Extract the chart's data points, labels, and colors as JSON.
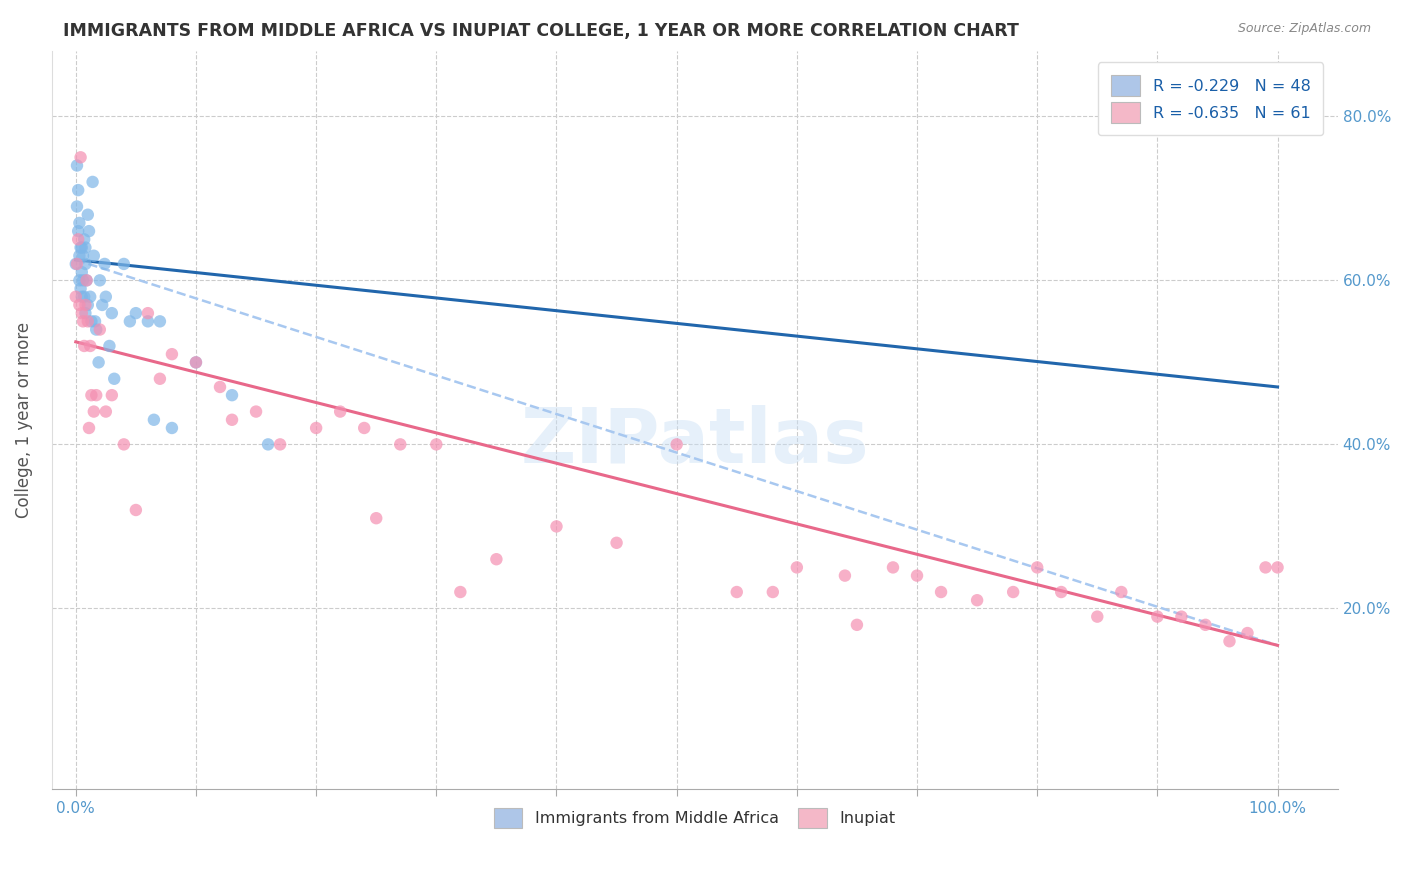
{
  "title": "IMMIGRANTS FROM MIDDLE AFRICA VS INUPIAT COLLEGE, 1 YEAR OR MORE CORRELATION CHART",
  "source": "Source: ZipAtlas.com",
  "ylabel": "College, 1 year or more",
  "xlim": [
    -0.02,
    1.05
  ],
  "ylim": [
    -0.02,
    0.88
  ],
  "x_tick_vals": [
    0.0,
    0.1,
    0.2,
    0.3,
    0.4,
    0.5,
    0.6,
    0.7,
    0.8,
    0.9,
    1.0
  ],
  "x_tick_labels_show": [
    "0.0%",
    "",
    "",
    "",
    "",
    "",
    "",
    "",
    "",
    "",
    "100.0%"
  ],
  "y_tick_vals": [
    0.2,
    0.4,
    0.6,
    0.8
  ],
  "y_tick_labels": [
    "20.0%",
    "40.0%",
    "60.0%",
    "80.0%"
  ],
  "legend1_labels": [
    "R = -0.229   N = 48",
    "R = -0.635   N = 61"
  ],
  "legend1_colors": [
    "#aec6e8",
    "#f4b8c8"
  ],
  "legend2_labels": [
    "Immigrants from Middle Africa",
    "Inupiat"
  ],
  "blue_scatter_color": "#7eb6e8",
  "pink_scatter_color": "#f48fb1",
  "blue_line_color": "#2166ac",
  "pink_line_color": "#e8688a",
  "dashed_line_color": "#a8c8f0",
  "watermark": "ZIPatlas",
  "blue_scatter_x": [
    0.0,
    0.001,
    0.001,
    0.002,
    0.002,
    0.003,
    0.003,
    0.003,
    0.004,
    0.004,
    0.005,
    0.005,
    0.005,
    0.006,
    0.006,
    0.007,
    0.007,
    0.008,
    0.008,
    0.008,
    0.009,
    0.01,
    0.01,
    0.011,
    0.012,
    0.013,
    0.014,
    0.015,
    0.016,
    0.017,
    0.019,
    0.02,
    0.022,
    0.024,
    0.025,
    0.028,
    0.03,
    0.032,
    0.04,
    0.045,
    0.05,
    0.06,
    0.065,
    0.07,
    0.08,
    0.1,
    0.13,
    0.16
  ],
  "blue_scatter_y": [
    0.62,
    0.74,
    0.69,
    0.66,
    0.71,
    0.67,
    0.63,
    0.6,
    0.64,
    0.59,
    0.64,
    0.61,
    0.58,
    0.63,
    0.6,
    0.65,
    0.58,
    0.62,
    0.56,
    0.64,
    0.6,
    0.68,
    0.57,
    0.66,
    0.58,
    0.55,
    0.72,
    0.63,
    0.55,
    0.54,
    0.5,
    0.6,
    0.57,
    0.62,
    0.58,
    0.52,
    0.56,
    0.48,
    0.62,
    0.55,
    0.56,
    0.55,
    0.43,
    0.55,
    0.42,
    0.5,
    0.46,
    0.4
  ],
  "pink_scatter_x": [
    0.0,
    0.001,
    0.002,
    0.003,
    0.004,
    0.005,
    0.006,
    0.007,
    0.008,
    0.009,
    0.01,
    0.011,
    0.012,
    0.013,
    0.015,
    0.017,
    0.02,
    0.025,
    0.03,
    0.04,
    0.05,
    0.06,
    0.07,
    0.08,
    0.1,
    0.12,
    0.13,
    0.15,
    0.17,
    0.2,
    0.22,
    0.24,
    0.25,
    0.27,
    0.3,
    0.32,
    0.35,
    0.4,
    0.45,
    0.5,
    0.55,
    0.58,
    0.6,
    0.64,
    0.65,
    0.68,
    0.7,
    0.72,
    0.75,
    0.78,
    0.8,
    0.82,
    0.85,
    0.87,
    0.9,
    0.92,
    0.94,
    0.96,
    0.975,
    0.99,
    1.0
  ],
  "pink_scatter_y": [
    0.58,
    0.62,
    0.65,
    0.57,
    0.75,
    0.56,
    0.55,
    0.52,
    0.57,
    0.6,
    0.55,
    0.42,
    0.52,
    0.46,
    0.44,
    0.46,
    0.54,
    0.44,
    0.46,
    0.4,
    0.32,
    0.56,
    0.48,
    0.51,
    0.5,
    0.47,
    0.43,
    0.44,
    0.4,
    0.42,
    0.44,
    0.42,
    0.31,
    0.4,
    0.4,
    0.22,
    0.26,
    0.3,
    0.28,
    0.4,
    0.22,
    0.22,
    0.25,
    0.24,
    0.18,
    0.25,
    0.24,
    0.22,
    0.21,
    0.22,
    0.25,
    0.22,
    0.19,
    0.22,
    0.19,
    0.19,
    0.18,
    0.16,
    0.17,
    0.25,
    0.25
  ],
  "blue_line_x": [
    0.0,
    1.0
  ],
  "blue_line_y": [
    0.625,
    0.47
  ],
  "pink_line_x": [
    0.0,
    1.0
  ],
  "pink_line_y": [
    0.525,
    0.155
  ],
  "dashed_line_x": [
    0.0,
    1.0
  ],
  "dashed_line_y": [
    0.625,
    0.155
  ]
}
